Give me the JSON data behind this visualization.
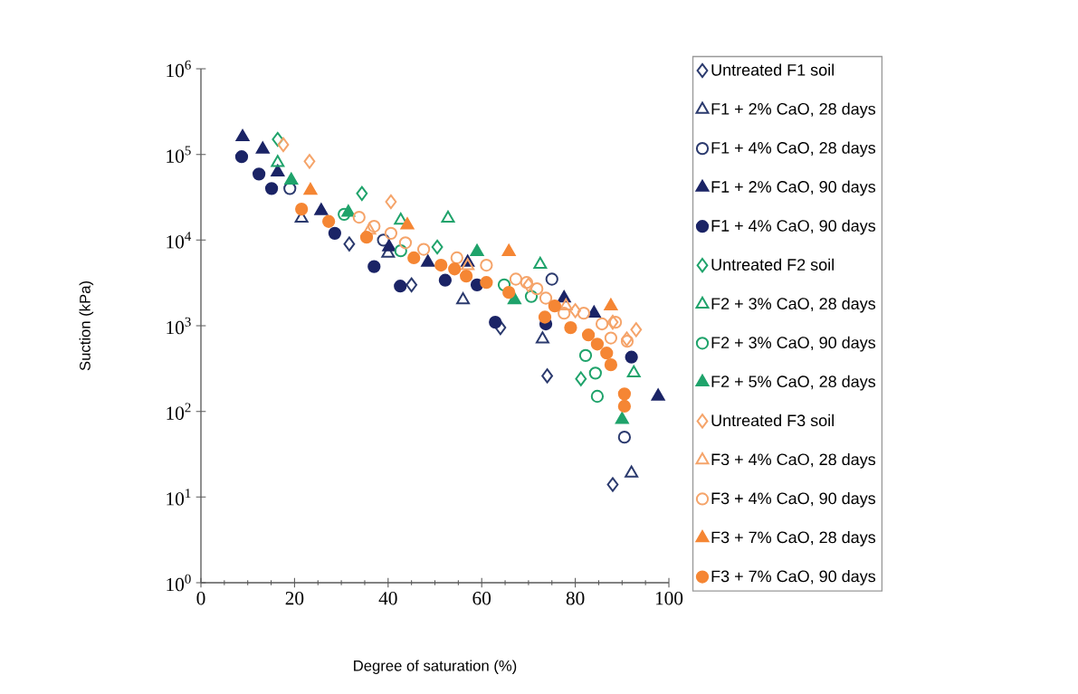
{
  "chart_data": {
    "type": "scatter",
    "xlabel": "Degree of saturation (%)",
    "ylabel": "Suction (kPa)",
    "log": "y",
    "legend": "right",
    "xlim": [
      0,
      100
    ],
    "xticks": [
      0,
      20,
      40,
      60,
      80,
      100
    ],
    "ylim": [
      1,
      1000000
    ],
    "yticks": [
      {
        "value": 1,
        "label": "10$^{0}$"
      },
      {
        "value": 10,
        "label": "10$^{1}$"
      },
      {
        "value": 100,
        "label": "10$^{2}$"
      },
      {
        "value": 1000,
        "label": "10$^{3}$"
      },
      {
        "value": 10000,
        "label": "10$^{4}$"
      },
      {
        "value": 100000,
        "label": "10$^{5}$"
      },
      {
        "value": 1000000,
        "label": "10$^{6}$"
      }
    ],
    "series": [
      {
        "name": "Untreated F1 soil",
        "color": "#2b3a6e",
        "marker": "diamond-open",
        "x": [
          31.7,
          45,
          64,
          74,
          88
        ],
        "values": [
          9000,
          3000,
          950,
          260,
          14
        ]
      },
      {
        "name": "F1 + 2% CaO, 28 days",
        "color": "#2b3a6e",
        "marker": "triangle-open",
        "x": [
          21.5,
          40,
          56,
          73,
          92
        ],
        "values": [
          18000,
          7000,
          2000,
          700,
          19
        ]
      },
      {
        "name": "F1 + 4% CaO, 28 days",
        "color": "#2b3a6e",
        "marker": "circle-open",
        "x": [
          19,
          39,
          75,
          90.5
        ],
        "values": [
          40000,
          10000,
          3500,
          50
        ]
      },
      {
        "name": "F1 + 2% CaO, 90 days",
        "color": "#1b2466",
        "marker": "triangle",
        "x": [
          8.9,
          13.2,
          16.4,
          25.7,
          40.2,
          48.5,
          57,
          77.6,
          84,
          97.7
        ],
        "values": [
          160000,
          115000,
          62000,
          22000,
          8300,
          5500,
          5500,
          2100,
          1400,
          150
        ]
      },
      {
        "name": "F1 + 4% CaO, 90 days",
        "color": "#1b2466",
        "marker": "circle",
        "x": [
          8.7,
          12.4,
          15.1,
          28.6,
          37,
          42.6,
          52.2,
          59,
          62.9,
          73.7,
          92
        ],
        "values": [
          94000,
          59000,
          40000,
          12000,
          4900,
          2900,
          3400,
          3000,
          1100,
          1050,
          430
        ]
      },
      {
        "name": "Untreated F2 soil",
        "color": "#1fa36b",
        "marker": "diamond-open",
        "x": [
          16.4,
          34.4,
          50.5,
          81.2
        ],
        "values": [
          150000,
          35000,
          8300,
          240
        ]
      },
      {
        "name": "F2 + 3% CaO, 28 days",
        "color": "#1fa36b",
        "marker": "triangle-open",
        "x": [
          16.4,
          42.7,
          52.8,
          72.5,
          92.5
        ],
        "values": [
          80000,
          17000,
          18000,
          5200,
          280
        ]
      },
      {
        "name": "F2 + 3% CaO, 90 days",
        "color": "#1fa36b",
        "marker": "circle-open",
        "x": [
          30.6,
          42.7,
          64.8,
          70.6,
          82.2,
          84.3,
          84.7
        ],
        "values": [
          20000,
          7500,
          3000,
          2200,
          450,
          280,
          150
        ]
      },
      {
        "name": "F2 + 5% CaO, 28 days",
        "color": "#1fa36b",
        "marker": "triangle",
        "x": [
          19.3,
          31.5,
          59,
          67,
          90
        ],
        "values": [
          50000,
          21000,
          7300,
          2000,
          80
        ]
      },
      {
        "name": "Untreated F3 soil",
        "color": "#f5a46a",
        "marker": "diamond-open",
        "x": [
          17.6,
          23.2,
          40.6,
          70,
          80,
          88,
          91,
          93
        ],
        "values": [
          130000,
          83000,
          28000,
          3000,
          1500,
          1100,
          700,
          900
        ]
      },
      {
        "name": "F3 + 4% CaO, 28 days",
        "color": "#f5a46a",
        "marker": "triangle-open",
        "x": [
          36,
          57,
          78
        ],
        "values": [
          13000,
          5000,
          1700
        ]
      },
      {
        "name": "F3 + 4% CaO, 90 days",
        "color": "#f5a46a",
        "marker": "circle-open",
        "x": [
          33.8,
          37,
          40.6,
          43.7,
          47.6,
          54.7,
          61,
          67.3,
          69.6,
          71.8,
          73.7,
          77.6,
          81.8,
          85.7,
          88.6,
          87.6,
          91.1
        ],
        "values": [
          18500,
          14500,
          12000,
          9300,
          7800,
          6200,
          5100,
          3500,
          3200,
          2700,
          2100,
          1400,
          1400,
          1050,
          1100,
          720,
          660
        ]
      },
      {
        "name": "F3 + 7% CaO, 28 days",
        "color": "#f58634",
        "marker": "triangle",
        "x": [
          23.4,
          44.1,
          65.8,
          87.6
        ],
        "values": [
          38000,
          15000,
          7300,
          1700
        ]
      },
      {
        "name": "F3 + 7% CaO, 90 days",
        "color": "#f58634",
        "marker": "circle",
        "x": [
          21.5,
          27.3,
          35.4,
          45.5,
          51.3,
          54.2,
          56.7,
          61,
          65.8,
          73.5,
          75.6,
          79,
          82.8,
          84.7,
          86.7,
          87.6,
          90.5,
          90.5
        ],
        "values": [
          23000,
          16500,
          10800,
          6200,
          5100,
          4600,
          3800,
          3200,
          2450,
          1260,
          1700,
          950,
          780,
          610,
          480,
          350,
          160,
          115
        ]
      }
    ]
  }
}
